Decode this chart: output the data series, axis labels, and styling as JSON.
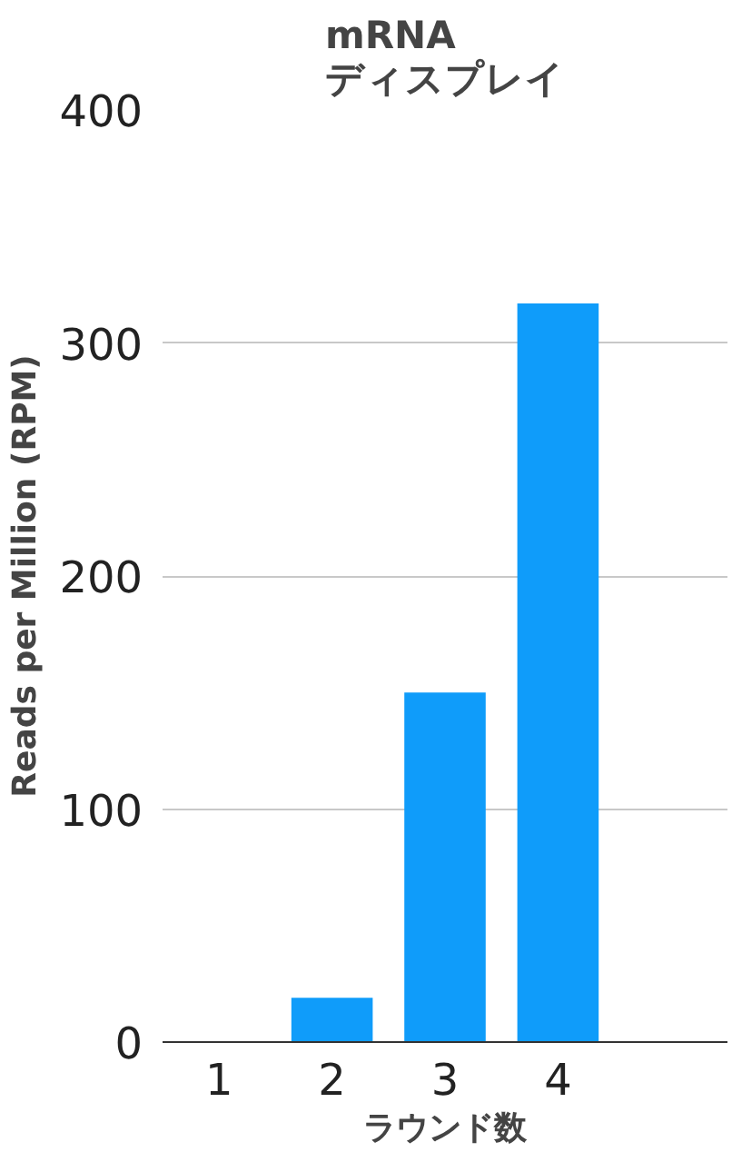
{
  "chart_data": {
    "type": "bar",
    "title": "mRNA\nディスプレイ",
    "xlabel": "ラウンド数",
    "ylabel": "Reads per Million (RPM)",
    "x": [
      1,
      2,
      3,
      4
    ],
    "xlim": [
      0.5,
      5.5
    ],
    "xticks": [
      1,
      2,
      3,
      4
    ],
    "values": [
      0,
      19,
      150,
      317
    ],
    "color": "#0f9cfa",
    "ylim": [
      0,
      400
    ],
    "yticks": [
      0,
      100,
      200,
      300,
      400
    ],
    "grid": "y"
  }
}
